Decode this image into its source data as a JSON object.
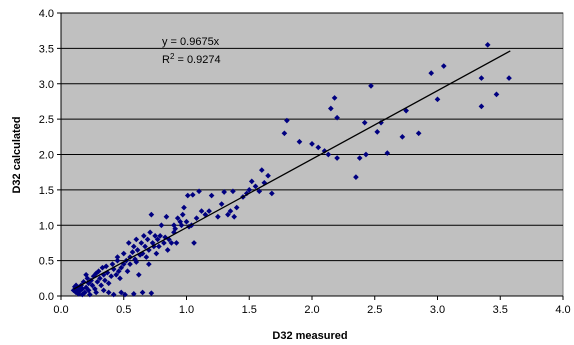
{
  "chart_data": {
    "type": "scatter",
    "xlabel": "D32 measured",
    "ylabel": "D32 calculated",
    "xlim": [
      0,
      4
    ],
    "ylim": [
      0,
      4
    ],
    "x_ticks": [
      "0.0",
      "0.5",
      "1.0",
      "1.5",
      "2.0",
      "2.5",
      "3.0",
      "3.5",
      "4.0"
    ],
    "y_ticks": [
      "0.0",
      "0.5",
      "1.0",
      "1.5",
      "2.0",
      "2.5",
      "3.0",
      "3.5",
      "4.0"
    ],
    "grid": "horizontal",
    "plot_background": "#c0c0c0",
    "marker_color": "#000080",
    "trendline": {
      "slope": 0.9675,
      "x_range": [
        0.1,
        3.58
      ],
      "color": "#000000",
      "equation_label": "y = 0.9675x",
      "r2_label_prefix": "R",
      "r2_label_sup": "2",
      "r2_label_suffix": " = 0.9274"
    },
    "points": [
      [
        0.1,
        0.08
      ],
      [
        0.11,
        0.13
      ],
      [
        0.12,
        0.05
      ],
      [
        0.12,
        0.15
      ],
      [
        0.13,
        0.1
      ],
      [
        0.14,
        0.03
      ],
      [
        0.14,
        0.12
      ],
      [
        0.15,
        0.07
      ],
      [
        0.16,
        0.15
      ],
      [
        0.17,
        0.02
      ],
      [
        0.17,
        0.1
      ],
      [
        0.18,
        0.2
      ],
      [
        0.19,
        0.05
      ],
      [
        0.2,
        0.12
      ],
      [
        0.2,
        0.3
      ],
      [
        0.21,
        0.25
      ],
      [
        0.22,
        0.08
      ],
      [
        0.22,
        0.18
      ],
      [
        0.23,
        0.02
      ],
      [
        0.24,
        0.22
      ],
      [
        0.25,
        0.15
      ],
      [
        0.26,
        0.28
      ],
      [
        0.27,
        0.1
      ],
      [
        0.28,
        0.32
      ],
      [
        0.28,
        0.05
      ],
      [
        0.29,
        0.2
      ],
      [
        0.3,
        0.35
      ],
      [
        0.31,
        0.25
      ],
      [
        0.32,
        0.15
      ],
      [
        0.33,
        0.4
      ],
      [
        0.34,
        0.3
      ],
      [
        0.34,
        0.08
      ],
      [
        0.35,
        0.22
      ],
      [
        0.36,
        0.42
      ],
      [
        0.37,
        0.33
      ],
      [
        0.38,
        0.05
      ],
      [
        0.38,
        0.18
      ],
      [
        0.4,
        0.28
      ],
      [
        0.41,
        0.45
      ],
      [
        0.42,
        0.38
      ],
      [
        0.42,
        0.02
      ],
      [
        0.44,
        0.3
      ],
      [
        0.45,
        0.5
      ],
      [
        0.45,
        0.55
      ],
      [
        0.46,
        0.35
      ],
      [
        0.47,
        0.25
      ],
      [
        0.48,
        0.4
      ],
      [
        0.48,
        0.05
      ],
      [
        0.5,
        0.45
      ],
      [
        0.5,
        0.6
      ],
      [
        0.51,
        0.02
      ],
      [
        0.52,
        0.5
      ],
      [
        0.53,
        0.35
      ],
      [
        0.54,
        0.75
      ],
      [
        0.55,
        0.55
      ],
      [
        0.55,
        0.45
      ],
      [
        0.57,
        0.62
      ],
      [
        0.58,
        0.03
      ],
      [
        0.58,
        0.7
      ],
      [
        0.59,
        0.52
      ],
      [
        0.6,
        0.48
      ],
      [
        0.6,
        0.8
      ],
      [
        0.61,
        0.65
      ],
      [
        0.62,
        0.3
      ],
      [
        0.63,
        0.58
      ],
      [
        0.64,
        0.75
      ],
      [
        0.65,
        0.6
      ],
      [
        0.65,
        0.05
      ],
      [
        0.66,
        0.85
      ],
      [
        0.67,
        0.7
      ],
      [
        0.68,
        0.55
      ],
      [
        0.69,
        0.8
      ],
      [
        0.7,
        0.65
      ],
      [
        0.7,
        0.45
      ],
      [
        0.71,
        0.9
      ],
      [
        0.72,
        1.15
      ],
      [
        0.72,
        0.04
      ],
      [
        0.73,
        0.75
      ],
      [
        0.74,
        0.7
      ],
      [
        0.75,
        0.85
      ],
      [
        0.76,
        0.6
      ],
      [
        0.77,
        0.8
      ],
      [
        0.78,
        0.7
      ],
      [
        0.79,
        0.85
      ],
      [
        0.8,
        1.0
      ],
      [
        0.82,
        0.75
      ],
      [
        0.83,
        0.83
      ],
      [
        0.84,
        1.12
      ],
      [
        0.85,
        0.65
      ],
      [
        0.86,
        0.8
      ],
      [
        0.88,
        0.75
      ],
      [
        0.9,
        0.9
      ],
      [
        0.9,
        1.0
      ],
      [
        0.91,
        0.95
      ],
      [
        0.92,
        0.75
      ],
      [
        0.93,
        1.1
      ],
      [
        0.95,
        1.05
      ],
      [
        0.96,
        1.0
      ],
      [
        0.97,
        1.15
      ],
      [
        0.98,
        1.25
      ],
      [
        1.0,
        1.05
      ],
      [
        1.01,
        1.42
      ],
      [
        1.02,
        0.98
      ],
      [
        1.04,
        1.0
      ],
      [
        1.05,
        1.43
      ],
      [
        1.06,
        0.75
      ],
      [
        1.08,
        1.1
      ],
      [
        1.1,
        1.48
      ],
      [
        1.12,
        1.2
      ],
      [
        1.15,
        1.15
      ],
      [
        1.18,
        1.2
      ],
      [
        1.2,
        1.42
      ],
      [
        1.25,
        1.12
      ],
      [
        1.28,
        1.3
      ],
      [
        1.3,
        1.47
      ],
      [
        1.33,
        1.15
      ],
      [
        1.35,
        1.2
      ],
      [
        1.37,
        1.48
      ],
      [
        1.38,
        1.12
      ],
      [
        1.4,
        1.25
      ],
      [
        1.45,
        1.4
      ],
      [
        1.48,
        1.45
      ],
      [
        1.5,
        1.5
      ],
      [
        1.52,
        1.62
      ],
      [
        1.55,
        1.55
      ],
      [
        1.58,
        1.48
      ],
      [
        1.6,
        1.78
      ],
      [
        1.62,
        1.6
      ],
      [
        1.65,
        1.7
      ],
      [
        1.68,
        1.45
      ],
      [
        1.78,
        2.3
      ],
      [
        1.8,
        2.48
      ],
      [
        1.9,
        2.18
      ],
      [
        2.0,
        2.15
      ],
      [
        2.05,
        2.1
      ],
      [
        2.1,
        2.05
      ],
      [
        2.13,
        2.0
      ],
      [
        2.15,
        2.65
      ],
      [
        2.18,
        2.8
      ],
      [
        2.2,
        2.52
      ],
      [
        2.2,
        1.95
      ],
      [
        2.35,
        1.68
      ],
      [
        2.38,
        1.95
      ],
      [
        2.42,
        2.45
      ],
      [
        2.43,
        2.0
      ],
      [
        2.47,
        2.97
      ],
      [
        2.52,
        2.32
      ],
      [
        2.55,
        2.45
      ],
      [
        2.6,
        2.02
      ],
      [
        2.72,
        2.25
      ],
      [
        2.75,
        2.62
      ],
      [
        2.85,
        2.3
      ],
      [
        2.95,
        3.15
      ],
      [
        3.0,
        2.78
      ],
      [
        3.05,
        3.25
      ],
      [
        3.35,
        3.08
      ],
      [
        3.35,
        2.68
      ],
      [
        3.4,
        3.55
      ],
      [
        3.47,
        2.85
      ],
      [
        3.57,
        3.08
      ]
    ]
  }
}
